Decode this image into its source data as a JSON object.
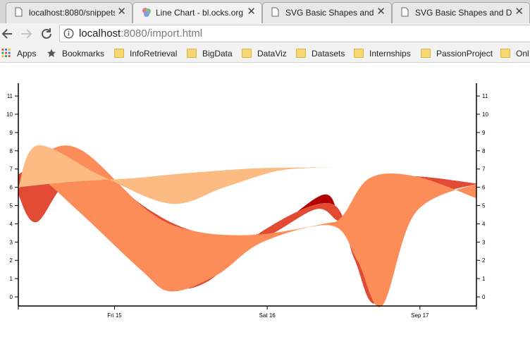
{
  "browser": {
    "tabs": [
      {
        "title": "localhost:8080/snippets",
        "icon": "page-icon",
        "active": false
      },
      {
        "title": "Line Chart - bl.ocks.org",
        "icon": "blocks-icon",
        "active": true
      },
      {
        "title": "SVG Basic Shapes and D",
        "icon": "page-icon",
        "active": false
      },
      {
        "title": "SVG Basic Shapes and D",
        "icon": "page-icon",
        "active": false
      }
    ],
    "address": {
      "host": "localhost",
      "path": ":8080/import.html"
    },
    "bookmarks": [
      {
        "label": "Apps",
        "icon": "apps-grid-icon"
      },
      {
        "label": "Bookmarks",
        "icon": "star-icon"
      },
      {
        "label": "InfoRetrieval",
        "icon": "folder-icon"
      },
      {
        "label": "BigData",
        "icon": "folder-icon"
      },
      {
        "label": "DataViz",
        "icon": "folder-icon"
      },
      {
        "label": "Datasets",
        "icon": "folder-icon"
      },
      {
        "label": "Internships",
        "icon": "folder-icon"
      },
      {
        "label": "PassionProject",
        "icon": "folder-icon"
      },
      {
        "label": "Onl",
        "icon": "folder-icon"
      }
    ]
  },
  "chart_data": {
    "type": "area",
    "x_ticks": [
      "Fri 15",
      "Sat 16",
      "Sep 17"
    ],
    "y_ticks": [
      "0",
      "1",
      "2",
      "3",
      "4",
      "5",
      "6",
      "7",
      "8",
      "9",
      "10",
      "11"
    ],
    "ylim": [
      -0.5,
      11.7
    ],
    "xlim": [
      0,
      3.0
    ],
    "tick_x": [
      0.63,
      1.63,
      2.63
    ],
    "grid": false,
    "colors": [
      "#b30000",
      "#e34a33",
      "#fc8d59",
      "#fdbb84"
    ],
    "series": [
      {
        "color": "#b30000",
        "lower": [
          [
            0,
            5.6
          ],
          [
            0.12,
            4.1
          ],
          [
            0.38,
            6.4
          ],
          [
            0.8,
            2.5
          ],
          [
            1.0,
            0.6
          ],
          [
            1.25,
            0.9
          ],
          [
            1.6,
            3.6
          ],
          [
            2.05,
            5.1
          ],
          [
            2.2,
            2.1
          ],
          [
            2.35,
            -0.3
          ],
          [
            2.6,
            4.8
          ],
          [
            3.0,
            6.2
          ]
        ],
        "upper": [
          [
            0,
            6.7
          ],
          [
            0.25,
            7.8
          ],
          [
            0.5,
            7.0
          ],
          [
            0.85,
            4.8
          ],
          [
            1.15,
            3.5
          ],
          [
            1.6,
            3.5
          ],
          [
            2.0,
            5.6
          ],
          [
            2.12,
            4.4
          ],
          [
            2.3,
            6.4
          ],
          [
            2.6,
            6.6
          ],
          [
            3.0,
            6.2
          ]
        ]
      },
      {
        "color": "#e34a33",
        "lower": [
          [
            0,
            5.6
          ],
          [
            0.12,
            4.1
          ],
          [
            0.38,
            6.4
          ],
          [
            0.8,
            2.5
          ],
          [
            1.0,
            0.6
          ],
          [
            1.25,
            0.9
          ],
          [
            1.6,
            3.6
          ],
          [
            2.05,
            5.1
          ],
          [
            2.2,
            2.1
          ],
          [
            2.35,
            -0.3
          ],
          [
            2.6,
            4.8
          ],
          [
            3.0,
            6.2
          ]
        ],
        "upper": [
          [
            0,
            6.7
          ],
          [
            0.25,
            7.8
          ],
          [
            0.5,
            7.0
          ],
          [
            0.85,
            4.8
          ],
          [
            1.15,
            3.6
          ],
          [
            1.55,
            3.1
          ],
          [
            1.95,
            4.8
          ],
          [
            2.12,
            4.2
          ],
          [
            2.3,
            6.4
          ],
          [
            2.6,
            6.6
          ],
          [
            3.0,
            6.2
          ]
        ]
      },
      {
        "color": "#fc8d59",
        "lower": [
          [
            0,
            5.9
          ],
          [
            0.12,
            6.6
          ],
          [
            0.38,
            4.8
          ],
          [
            0.8,
            1.5
          ],
          [
            1.0,
            0.3
          ],
          [
            1.3,
            1.2
          ],
          [
            1.6,
            3.0
          ],
          [
            2.05,
            3.9
          ],
          [
            2.22,
            2.0
          ],
          [
            2.38,
            -0.5
          ],
          [
            2.6,
            4.6
          ],
          [
            3.0,
            6.2
          ]
        ],
        "upper": [
          [
            0,
            6.0
          ],
          [
            0.18,
            7.9
          ],
          [
            0.42,
            8.0
          ],
          [
            0.85,
            4.7
          ],
          [
            1.15,
            3.6
          ],
          [
            1.55,
            3.4
          ],
          [
            2.0,
            4.0
          ],
          [
            2.12,
            4.4
          ],
          [
            2.3,
            6.5
          ],
          [
            2.6,
            6.6
          ],
          [
            3.0,
            5.4
          ]
        ]
      },
      {
        "color": "#fdbb84",
        "lower": [
          [
            0,
            6.0
          ],
          [
            0.35,
            6.3
          ],
          [
            0.75,
            6.5
          ],
          [
            1.0,
            6.7
          ],
          [
            1.3,
            6.9
          ],
          [
            1.6,
            7.05
          ],
          [
            2.05,
            7.1
          ]
        ],
        "upper": [
          [
            0,
            6.0
          ],
          [
            0.13,
            8.3
          ],
          [
            0.55,
            6.6
          ],
          [
            1.0,
            5.1
          ],
          [
            1.35,
            6.0
          ],
          [
            1.7,
            6.9
          ],
          [
            2.05,
            7.1
          ]
        ]
      }
    ]
  }
}
